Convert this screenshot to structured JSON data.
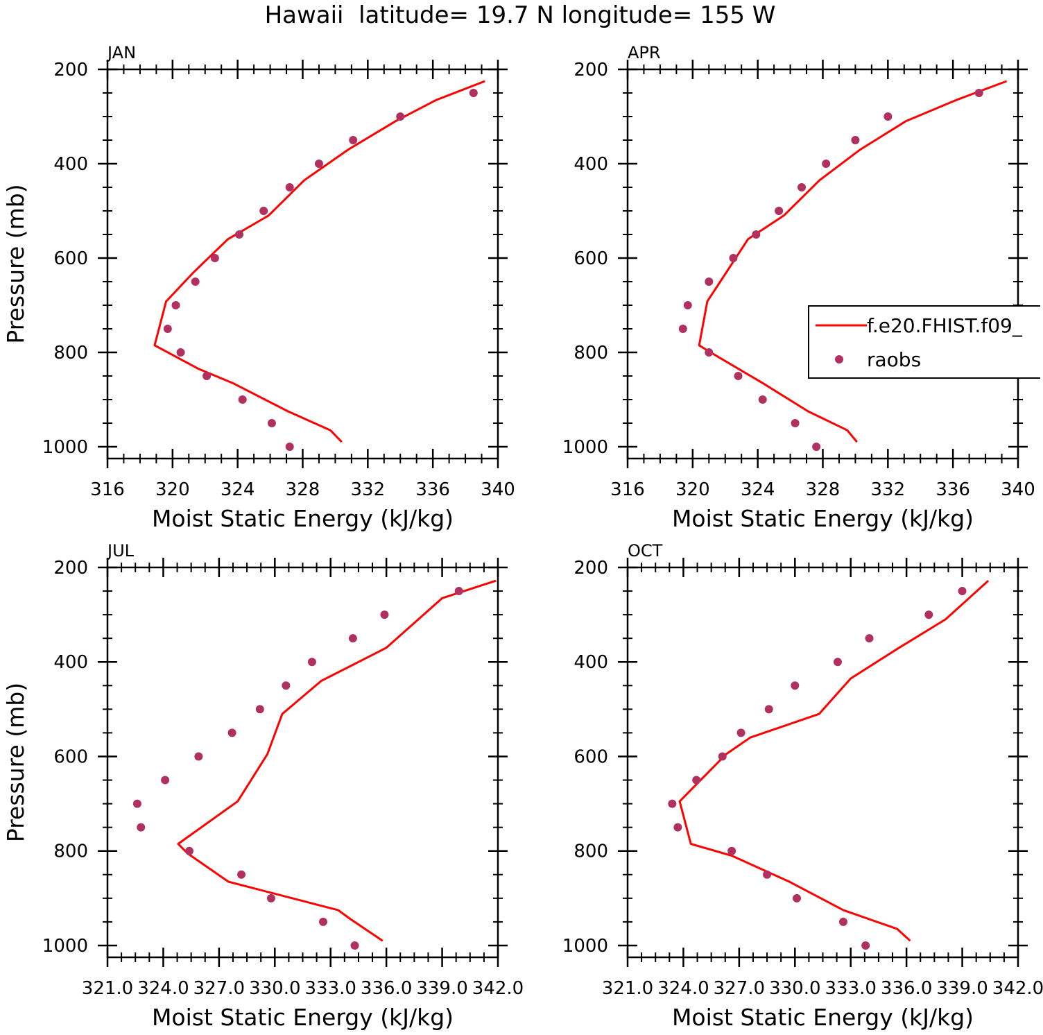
{
  "title": "Hawaii  latitude= 19.7 N longitude= 155 W",
  "chart_data": [
    {
      "type": "line",
      "panel": "JAN",
      "xlabel": "Moist Static Energy (kJ/kg)",
      "ylabel": "Pressure (mb)",
      "xlim": [
        316,
        340
      ],
      "xticks": [
        316,
        320,
        324,
        328,
        332,
        336,
        340
      ],
      "xtick_labels": [
        "316",
        "320",
        "324",
        "328",
        "332",
        "336",
        "340"
      ],
      "ylim": [
        1025,
        200
      ],
      "yticks": [
        200,
        400,
        600,
        800,
        1000
      ],
      "yticks_minor": [
        250,
        300,
        350,
        450,
        500,
        550,
        650,
        700,
        750,
        850,
        900,
        950
      ],
      "series": [
        {
          "name": "f.e20.FHIST.f09_",
          "style": "line",
          "color": "#ff0000",
          "x": [
            339.2,
            336.2,
            333.7,
            330.8,
            328.1,
            325.9,
            323.4,
            321.3,
            319.6,
            318.9,
            321.6,
            323.7,
            327.1,
            329.7,
            330.4
          ],
          "y": [
            225,
            265,
            310,
            370,
            435,
            510,
            560,
            630,
            692,
            785,
            835,
            865,
            925,
            965,
            990
          ]
        },
        {
          "name": "raobs",
          "style": "markers",
          "color": "#b03060",
          "x": [
            338.5,
            334.0,
            331.1,
            329.0,
            327.2,
            325.6,
            324.1,
            322.6,
            321.4,
            320.2,
            319.7,
            320.5,
            322.1,
            324.3,
            326.1,
            327.2
          ],
          "y": [
            250,
            300,
            350,
            400,
            450,
            500,
            550,
            600,
            650,
            700,
            750,
            800,
            850,
            900,
            950,
            1000
          ]
        }
      ]
    },
    {
      "type": "line",
      "panel": "APR",
      "xlabel": "Moist Static Energy (kJ/kg)",
      "ylabel": "",
      "xlim": [
        316,
        340
      ],
      "xticks": [
        316,
        320,
        324,
        328,
        332,
        336,
        340
      ],
      "xtick_labels": [
        "316",
        "320",
        "324",
        "328",
        "332",
        "336",
        "340"
      ],
      "ylim": [
        1025,
        200
      ],
      "yticks": [
        200,
        400,
        600,
        800,
        1000
      ],
      "yticks_minor": [
        250,
        300,
        350,
        450,
        500,
        550,
        650,
        700,
        750,
        850,
        900,
        950
      ],
      "legend": {
        "position": "right",
        "entries": [
          {
            "label": "f.e20.FHIST.f09_",
            "style": "line",
            "color": "#ff0000"
          },
          {
            "label": "raobs",
            "style": "markers",
            "color": "#b03060"
          }
        ]
      },
      "series": [
        {
          "name": "f.e20.FHIST.f09_",
          "style": "line",
          "color": "#ff0000",
          "x": [
            339.3,
            336.2,
            333.1,
            330.3,
            327.8,
            325.6,
            323.4,
            320.9,
            320.4,
            321.1,
            324.3,
            327.1,
            329.5,
            330.1
          ],
          "y": [
            225,
            265,
            310,
            370,
            435,
            510,
            560,
            692,
            785,
            800,
            865,
            925,
            965,
            990
          ]
        },
        {
          "name": "raobs",
          "style": "markers",
          "color": "#b03060",
          "x": [
            337.6,
            332.0,
            330.0,
            328.2,
            326.7,
            325.3,
            323.9,
            322.5,
            321.0,
            319.7,
            319.4,
            321.0,
            322.8,
            324.3,
            326.3,
            327.6
          ],
          "y": [
            250,
            300,
            350,
            400,
            450,
            500,
            550,
            600,
            650,
            700,
            750,
            800,
            850,
            900,
            950,
            1000
          ]
        }
      ]
    },
    {
      "type": "line",
      "panel": "JUL",
      "xlabel": "Moist Static Energy (kJ/kg)",
      "ylabel": "Pressure (mb)",
      "xlim": [
        321,
        342
      ],
      "xticks": [
        321,
        324,
        327,
        330,
        333,
        336,
        339,
        342
      ],
      "xtick_labels": [
        "321.0",
        "324.0",
        "327.0",
        "330.0",
        "333.0",
        "336.0",
        "339.0",
        "342.0"
      ],
      "ylim": [
        1025,
        200
      ],
      "yticks": [
        200,
        400,
        600,
        800,
        1000
      ],
      "yticks_minor": [
        250,
        300,
        350,
        450,
        500,
        550,
        650,
        700,
        750,
        850,
        900,
        950
      ],
      "series": [
        {
          "name": "f.e20.FHIST.f09_",
          "style": "line",
          "color": "#ff0000",
          "x": [
            341.9,
            339.0,
            336.0,
            332.5,
            330.4,
            329.6,
            328.0,
            324.8,
            325.3,
            327.5,
            333.4,
            334.1,
            335.8
          ],
          "y": [
            228,
            265,
            370,
            440,
            510,
            595,
            695,
            785,
            805,
            865,
            925,
            945,
            990
          ]
        },
        {
          "name": "raobs",
          "style": "markers",
          "color": "#b03060",
          "x": [
            339.9,
            335.9,
            334.2,
            332.0,
            330.6,
            329.2,
            327.7,
            325.9,
            324.1,
            322.6,
            322.8,
            325.4,
            328.2,
            329.8,
            332.6,
            334.3
          ],
          "y": [
            250,
            300,
            350,
            400,
            450,
            500,
            550,
            600,
            650,
            700,
            750,
            800,
            850,
            900,
            950,
            1000
          ]
        }
      ]
    },
    {
      "type": "line",
      "panel": "OCT",
      "xlabel": "Moist Static Energy (kJ/kg)",
      "ylabel": "",
      "xlim": [
        321,
        342
      ],
      "xticks": [
        321,
        324,
        327,
        330,
        333,
        336,
        339,
        342
      ],
      "xtick_labels": [
        "321.0",
        "324.0",
        "327.0",
        "330.0",
        "333.0",
        "336.0",
        "339.0",
        "342.0"
      ],
      "ylim": [
        1025,
        200
      ],
      "yticks": [
        200,
        400,
        600,
        800,
        1000
      ],
      "yticks_minor": [
        250,
        300,
        350,
        450,
        500,
        550,
        650,
        700,
        750,
        850,
        900,
        950
      ],
      "series": [
        {
          "name": "f.e20.FHIST.f09_",
          "style": "line",
          "color": "#ff0000",
          "x": [
            340.4,
            338.1,
            335.6,
            333.0,
            331.3,
            327.6,
            326.3,
            323.8,
            324.4,
            326.6,
            329.7,
            332.6,
            335.5,
            336.2
          ],
          "y": [
            228,
            310,
            370,
            435,
            510,
            560,
            595,
            695,
            785,
            810,
            865,
            925,
            965,
            990
          ]
        },
        {
          "name": "raobs",
          "style": "markers",
          "color": "#b03060",
          "x": [
            339.0,
            337.2,
            334.0,
            332.3,
            330.0,
            328.6,
            327.1,
            326.1,
            324.7,
            323.4,
            323.7,
            326.6,
            328.5,
            330.1,
            332.6,
            333.8
          ],
          "y": [
            250,
            300,
            350,
            400,
            450,
            500,
            550,
            600,
            650,
            700,
            750,
            800,
            850,
            900,
            950,
            1000
          ]
        }
      ]
    }
  ]
}
